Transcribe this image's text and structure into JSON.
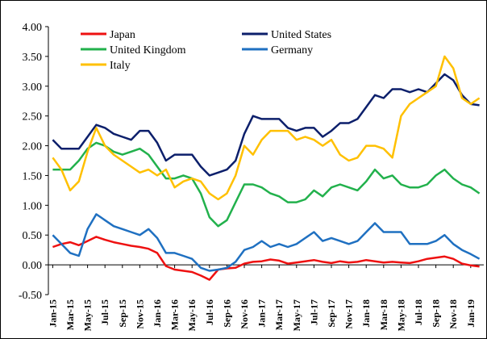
{
  "chart_data": {
    "type": "line",
    "categories": [
      "Jan-15",
      null,
      "Mar-15",
      null,
      "May-15",
      null,
      "Jul-15",
      null,
      "Sep-15",
      null,
      "Nov-15",
      null,
      "Jan-16",
      null,
      "Mar-16",
      null,
      "May-16",
      null,
      "Jul-16",
      null,
      "Sep-16",
      null,
      "Nov-16",
      null,
      "Jan-17",
      null,
      "Mar-17",
      null,
      "May-17",
      null,
      "Jul-17",
      null,
      "Sep-17",
      null,
      "Nov-17",
      null,
      "Jan-18",
      null,
      "Mar-18",
      null,
      "May-18",
      null,
      "Jul-18",
      null,
      "Sep-18",
      null,
      "Nov-18",
      null,
      "Jan-19",
      null
    ],
    "series": [
      {
        "name": "Japan",
        "color": "#ee1111",
        "values": [
          0.3,
          0.35,
          0.38,
          0.33,
          0.4,
          0.47,
          0.42,
          0.38,
          0.35,
          0.32,
          0.3,
          0.27,
          0.2,
          -0.02,
          -0.08,
          -0.1,
          -0.12,
          -0.18,
          -0.25,
          -0.08,
          -0.06,
          -0.05,
          0.02,
          0.05,
          0.06,
          0.09,
          0.07,
          0.02,
          0.04,
          0.06,
          0.08,
          0.05,
          0.03,
          0.06,
          0.04,
          0.05,
          0.08,
          0.06,
          0.04,
          0.05,
          0.04,
          0.03,
          0.06,
          0.1,
          0.12,
          0.14,
          0.1,
          0.02,
          -0.01,
          -0.03
        ]
      },
      {
        "name": "United States",
        "color": "#0c1f6b",
        "values": [
          2.1,
          1.95,
          1.95,
          1.95,
          2.15,
          2.35,
          2.3,
          2.2,
          2.15,
          2.1,
          2.25,
          2.25,
          2.05,
          1.75,
          1.85,
          1.85,
          1.85,
          1.65,
          1.5,
          1.55,
          1.6,
          1.75,
          2.2,
          2.5,
          2.45,
          2.45,
          2.45,
          2.3,
          2.25,
          2.3,
          2.3,
          2.15,
          2.25,
          2.38,
          2.38,
          2.45,
          2.65,
          2.85,
          2.8,
          2.95,
          2.95,
          2.9,
          2.95,
          2.9,
          3.05,
          3.2,
          3.1,
          2.85,
          2.7,
          2.68
        ]
      },
      {
        "name": "United Kingdom",
        "color": "#22b14c",
        "values": [
          1.6,
          1.6,
          1.6,
          1.75,
          1.95,
          2.05,
          2.0,
          1.9,
          1.85,
          1.9,
          1.95,
          1.85,
          1.65,
          1.45,
          1.45,
          1.5,
          1.45,
          1.2,
          0.8,
          0.65,
          0.75,
          1.05,
          1.35,
          1.35,
          1.3,
          1.2,
          1.15,
          1.05,
          1.05,
          1.1,
          1.25,
          1.15,
          1.3,
          1.35,
          1.3,
          1.25,
          1.4,
          1.6,
          1.45,
          1.5,
          1.35,
          1.3,
          1.3,
          1.35,
          1.5,
          1.6,
          1.45,
          1.35,
          1.3,
          1.2
        ]
      },
      {
        "name": "Germany",
        "color": "#1f70c1",
        "values": [
          0.5,
          0.35,
          0.2,
          0.15,
          0.6,
          0.85,
          0.75,
          0.65,
          0.6,
          0.55,
          0.5,
          0.6,
          0.45,
          0.2,
          0.2,
          0.15,
          0.1,
          -0.05,
          -0.1,
          -0.08,
          -0.05,
          0.05,
          0.25,
          0.3,
          0.4,
          0.3,
          0.35,
          0.3,
          0.35,
          0.45,
          0.55,
          0.4,
          0.45,
          0.4,
          0.35,
          0.4,
          0.55,
          0.7,
          0.55,
          0.55,
          0.55,
          0.35,
          0.35,
          0.35,
          0.4,
          0.5,
          0.35,
          0.25,
          0.18,
          0.1
        ]
      },
      {
        "name": "Italy",
        "color": "#ffc000",
        "values": [
          1.8,
          1.6,
          1.25,
          1.4,
          1.9,
          2.3,
          2.0,
          1.85,
          1.75,
          1.65,
          1.55,
          1.6,
          1.5,
          1.6,
          1.3,
          1.4,
          1.45,
          1.4,
          1.2,
          1.1,
          1.2,
          1.5,
          2.0,
          1.85,
          2.1,
          2.25,
          2.25,
          2.25,
          2.1,
          2.15,
          2.1,
          2.0,
          2.1,
          1.85,
          1.75,
          1.8,
          2.0,
          2.0,
          1.95,
          1.8,
          2.5,
          2.7,
          2.8,
          2.9,
          3.0,
          3.5,
          3.3,
          2.8,
          2.7,
          2.8
        ]
      }
    ],
    "ylim": [
      -0.5,
      4
    ],
    "yticks": [
      {
        "value": -0.5,
        "label": "-0.50"
      },
      {
        "value": 0,
        "label": "0.00"
      },
      {
        "value": 0.5,
        "label": "0.50"
      },
      {
        "value": 1,
        "label": "1.00"
      },
      {
        "value": 1.5,
        "label": "1.50"
      },
      {
        "value": 2,
        "label": "2.00"
      },
      {
        "value": 2.5,
        "label": "2.50"
      },
      {
        "value": 3,
        "label": "3.00"
      },
      {
        "value": 3.5,
        "label": "3.50"
      },
      {
        "value": 4,
        "label": "4.00"
      }
    ],
    "legend": "top"
  }
}
